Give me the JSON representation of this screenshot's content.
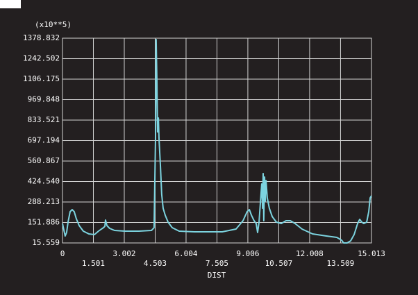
{
  "chart_data": {
    "type": "line",
    "ylabel": "(x10**5)",
    "xlabel": "DIST",
    "x": [
      0,
      0.13,
      0.2,
      0.27,
      0.37,
      0.47,
      0.57,
      0.67,
      0.81,
      1.01,
      1.28,
      1.55,
      1.75,
      1.89,
      1.99,
      2.06,
      2.09,
      2.16,
      2.29,
      2.53,
      3.04,
      3.71,
      4.32,
      4.45,
      4.52,
      4.55,
      4.59,
      4.62,
      4.66,
      4.69,
      4.76,
      4.82,
      4.89,
      4.99,
      5.13,
      5.33,
      5.67,
      6.41,
      7.76,
      8.43,
      8.77,
      8.97,
      9.08,
      9.18,
      9.31,
      9.41,
      9.48,
      9.55,
      9.62,
      9.68,
      9.72,
      9.75,
      9.78,
      9.82,
      9.85,
      9.89,
      9.95,
      10.05,
      10.19,
      10.39,
      10.63,
      10.86,
      11.07,
      11.3,
      11.64,
      12.15,
      12.82,
      13.33,
      13.56,
      13.66,
      13.83,
      14.0,
      14.17,
      14.34,
      14.44,
      14.54,
      14.64,
      14.78,
      14.88,
      14.95,
      15.01
    ],
    "series": [
      {
        "color": "#7cd3df",
        "values": [
          144.9,
          61.8,
          84.9,
          154.2,
          223.5,
          237.4,
          223.5,
          177.3,
          131.1,
          94.1,
          75.6,
          71.0,
          94.1,
          108.0,
          117.2,
          126.5,
          168.1,
          131.1,
          112.6,
          98.7,
          94.1,
          94.1,
          98.7,
          117.2,
          708.7,
          1370,
          1078.4,
          754.9,
          847.4,
          708.7,
          523.9,
          339.0,
          246.6,
          200.4,
          154.2,
          117.2,
          94.1,
          89.5,
          89.5,
          108.0,
          163.4,
          223.5,
          237.4,
          200.4,
          163.4,
          144.9,
          84.9,
          154.2,
          292.8,
          408.4,
          246.6,
          477.7,
          163.4,
          454.6,
          292.8,
          431.5,
          315.9,
          246.6,
          191.2,
          154.2,
          144.9,
          163.4,
          163.4,
          144.9,
          108.0,
          75.6,
          61.8,
          52.5,
          34.0,
          15.6,
          15.6,
          29.4,
          71.0,
          144.9,
          172.7,
          154.2,
          144.9,
          154.2,
          223.5,
          315.9,
          329.8
        ]
      }
    ],
    "xlim": [
      0,
      15.013
    ],
    "ylim": [
      15.559,
      1378.832
    ],
    "xticks": [
      0,
      1.501,
      3.002,
      4.503,
      6.004,
      7.505,
      9.006,
      10.507,
      12.008,
      13.509,
      15.013
    ],
    "yticks": [
      15.559,
      151.886,
      288.213,
      {
        "value": 424.54,
        "label": "424.540"
      },
      560.867,
      697.194,
      833.521,
      969.848,
      1106.175,
      1242.502,
      1378.832
    ],
    "grid": true,
    "grid_color": "#d4d4d4"
  }
}
